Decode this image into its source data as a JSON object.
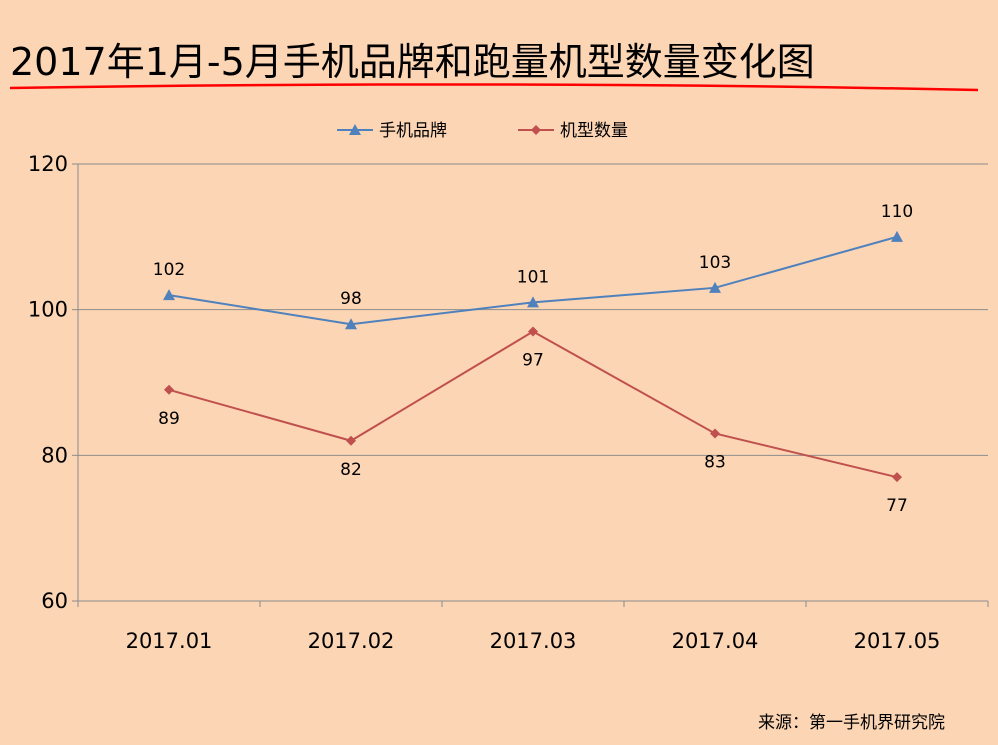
{
  "chart_data": {
    "type": "line",
    "title": "2017年1月-5月手机品牌和跑量机型数量变化图",
    "categories": [
      "2017.01",
      "2017.02",
      "2017.03",
      "2017.04",
      "2017.05"
    ],
    "series": [
      {
        "name": "手机品牌",
        "values": [
          102,
          98,
          101,
          103,
          110
        ],
        "color": "#4F81BD",
        "marker": "triangle",
        "label_position": "above"
      },
      {
        "name": "机型数量",
        "values": [
          89,
          82,
          97,
          83,
          77
        ],
        "color": "#C0504D",
        "marker": "diamond",
        "label_position": "below"
      }
    ],
    "ylim": [
      60,
      120
    ],
    "yticks": [
      60,
      80,
      100,
      120
    ],
    "grid": true,
    "legend": "top",
    "title_underline_color": "#FF0000",
    "source": "来源：第一手机界研究院"
  }
}
